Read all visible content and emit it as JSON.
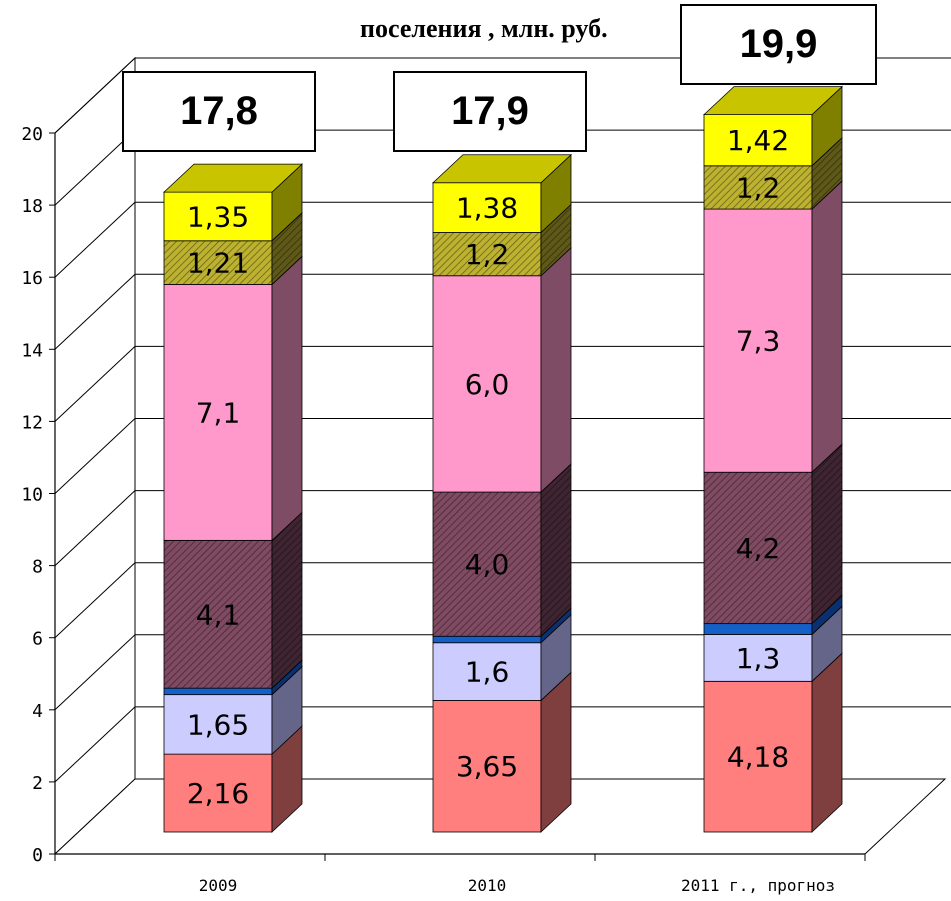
{
  "chart_data": {
    "type": "bar",
    "stacked": true,
    "three_d": true,
    "title": "поселения , млн. руб.",
    "categories": [
      "2009",
      "2010",
      "2011 г., прогноз"
    ],
    "ylim": [
      0,
      20
    ],
    "yticks": [
      "0",
      "2",
      "4",
      "6",
      "8",
      "10",
      "12",
      "14",
      "16",
      "18",
      "20"
    ],
    "grid": true,
    "totals": [
      "17,8",
      "17,9",
      "19,9"
    ],
    "series": [
      {
        "values": [
          2.16,
          3.65,
          4.18
        ],
        "labels": [
          "2,16",
          "3,65",
          "4,18"
        ],
        "color": "#ff7f7f",
        "side": "#7f3f3f",
        "top": "#ffa0a0",
        "pattern": ""
      },
      {
        "values": [
          1.65,
          1.6,
          1.3
        ],
        "labels": [
          "1,65",
          "1,6",
          "1,3"
        ],
        "color": "#ccccff",
        "side": "#65658a",
        "top": "#e0e0ff",
        "pattern": ""
      },
      {
        "values": [
          0.18,
          0.18,
          0.3
        ],
        "labels": [
          "",
          "",
          ""
        ],
        "color": "#1560c8",
        "side": "#0a3070",
        "top": "#3f80e0",
        "pattern": ""
      },
      {
        "values": [
          4.1,
          4.0,
          4.2
        ],
        "labels": [
          "4,1",
          "4,0",
          "4,2"
        ],
        "color": "#7f4a62",
        "side": "#3f2431",
        "top": "#a06a82",
        "pattern": "hatch"
      },
      {
        "values": [
          7.1,
          6.0,
          7.3
        ],
        "labels": [
          "7,1",
          "6,0",
          "7,3"
        ],
        "color": "#ff99cc",
        "side": "#7f4c66",
        "top": "#ffc0e0",
        "pattern": ""
      },
      {
        "values": [
          1.21,
          1.2,
          1.2
        ],
        "labels": [
          "1,21",
          "1,2",
          "1,2"
        ],
        "color": "#bdb230",
        "side": "#5f5918",
        "top": "#d8cc50",
        "pattern": "hatch"
      },
      {
        "values": [
          1.35,
          1.38,
          1.42
        ],
        "labels": [
          "1,35",
          "1,38",
          "1,42"
        ],
        "color": "#ffff00",
        "side": "#808000",
        "top": "#c8c400",
        "pattern": ""
      }
    ]
  }
}
